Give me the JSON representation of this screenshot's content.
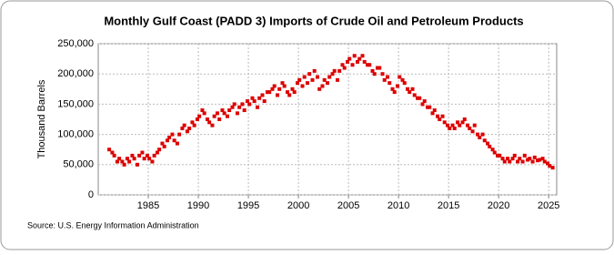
{
  "chart_data": {
    "type": "scatter",
    "title": "Monthly Gulf Coast (PADD 3) Imports of Crude Oil and Petroleum Products",
    "y_label": "Thousand Barrels",
    "source": "Source: U.S. Energy Information Administration",
    "color": "#dd0000",
    "grid": true,
    "xlim": [
      1980,
      2025.8
    ],
    "ylim": [
      0,
      250000
    ],
    "xticks": [
      1985,
      1990,
      1995,
      2000,
      2005,
      2010,
      2015,
      2020,
      2025
    ],
    "yticks": [
      0,
      {
        "value": 50000,
        "label": "50,000"
      },
      {
        "value": 100000,
        "label": "100,000"
      },
      {
        "value": 150000,
        "label": "150,000"
      },
      {
        "value": 200000,
        "label": "200,000"
      },
      {
        "value": 250000,
        "label": "250,000"
      }
    ],
    "x": [
      1981.1,
      1981.4,
      1981.6,
      1981.9,
      1982.1,
      1982.4,
      1982.6,
      1982.9,
      1983.1,
      1983.4,
      1983.6,
      1983.9,
      1984.1,
      1984.4,
      1984.6,
      1984.9,
      1985.1,
      1985.4,
      1985.6,
      1985.9,
      1986.1,
      1986.4,
      1986.6,
      1986.9,
      1987.1,
      1987.4,
      1987.6,
      1987.9,
      1988.1,
      1988.4,
      1988.6,
      1988.9,
      1989.1,
      1989.4,
      1989.6,
      1989.9,
      1990.1,
      1990.4,
      1990.6,
      1990.9,
      1991.1,
      1991.4,
      1991.6,
      1991.9,
      1992.1,
      1992.4,
      1992.6,
      1992.9,
      1993.1,
      1993.4,
      1993.6,
      1993.9,
      1994.1,
      1994.4,
      1994.6,
      1994.9,
      1995.1,
      1995.4,
      1995.6,
      1995.9,
      1996.1,
      1996.4,
      1996.6,
      1996.9,
      1997.1,
      1997.4,
      1997.6,
      1997.9,
      1998.1,
      1998.4,
      1998.6,
      1998.9,
      1999.1,
      1999.4,
      1999.6,
      1999.9,
      2000.1,
      2000.4,
      2000.6,
      2000.9,
      2001.1,
      2001.4,
      2001.6,
      2001.9,
      2002.1,
      2002.4,
      2002.6,
      2002.9,
      2003.1,
      2003.4,
      2003.6,
      2003.9,
      2004.1,
      2004.4,
      2004.6,
      2004.9,
      2005.1,
      2005.4,
      2005.6,
      2005.9,
      2006.1,
      2006.4,
      2006.6,
      2006.9,
      2007.1,
      2007.4,
      2007.6,
      2007.9,
      2008.1,
      2008.4,
      2008.6,
      2008.9,
      2009.1,
      2009.4,
      2009.6,
      2009.9,
      2010.1,
      2010.4,
      2010.6,
      2010.9,
      2011.1,
      2011.4,
      2011.6,
      2011.9,
      2012.1,
      2012.4,
      2012.6,
      2012.9,
      2013.1,
      2013.4,
      2013.6,
      2013.9,
      2014.1,
      2014.4,
      2014.6,
      2014.9,
      2015.1,
      2015.4,
      2015.6,
      2015.9,
      2016.1,
      2016.4,
      2016.6,
      2016.9,
      2017.1,
      2017.4,
      2017.6,
      2017.9,
      2018.1,
      2018.4,
      2018.6,
      2018.9,
      2019.1,
      2019.4,
      2019.6,
      2019.9,
      2020.1,
      2020.4,
      2020.6,
      2020.9,
      2021.1,
      2021.4,
      2021.6,
      2021.9,
      2022.1,
      2022.4,
      2022.6,
      2022.9,
      2023.1,
      2023.4,
      2023.6,
      2023.9,
      2024.1,
      2024.4,
      2024.6,
      2024.9,
      2025.1,
      2025.4
    ],
    "values": [
      75000,
      70000,
      65000,
      55000,
      60000,
      55000,
      50000,
      60000,
      55000,
      65000,
      60000,
      50000,
      65000,
      70000,
      60000,
      65000,
      60000,
      55000,
      65000,
      70000,
      75000,
      85000,
      80000,
      90000,
      95000,
      100000,
      90000,
      85000,
      100000,
      110000,
      115000,
      105000,
      110000,
      120000,
      115000,
      125000,
      130000,
      140000,
      135000,
      125000,
      120000,
      115000,
      130000,
      135000,
      125000,
      140000,
      135000,
      130000,
      140000,
      145000,
      150000,
      135000,
      145000,
      150000,
      140000,
      155000,
      150000,
      160000,
      155000,
      145000,
      160000,
      165000,
      155000,
      170000,
      170000,
      175000,
      180000,
      165000,
      175000,
      185000,
      180000,
      170000,
      165000,
      175000,
      170000,
      185000,
      190000,
      180000,
      195000,
      185000,
      200000,
      190000,
      205000,
      195000,
      175000,
      180000,
      190000,
      185000,
      195000,
      200000,
      205000,
      190000,
      205000,
      215000,
      210000,
      220000,
      225000,
      215000,
      230000,
      220000,
      225000,
      230000,
      220000,
      215000,
      215000,
      205000,
      200000,
      210000,
      210000,
      200000,
      190000,
      195000,
      185000,
      175000,
      170000,
      180000,
      195000,
      190000,
      185000,
      175000,
      170000,
      175000,
      165000,
      160000,
      160000,
      150000,
      155000,
      145000,
      145000,
      135000,
      140000,
      130000,
      125000,
      130000,
      120000,
      115000,
      110000,
      115000,
      110000,
      120000,
      115000,
      120000,
      125000,
      115000,
      110000,
      105000,
      115000,
      100000,
      95000,
      100000,
      90000,
      85000,
      80000,
      75000,
      70000,
      65000,
      65000,
      60000,
      55000,
      60000,
      55000,
      60000,
      65000,
      55000,
      60000,
      55000,
      65000,
      58000,
      60000,
      55000,
      62000,
      57000,
      58000,
      60000,
      55000,
      52000,
      48000,
      45000
    ]
  }
}
